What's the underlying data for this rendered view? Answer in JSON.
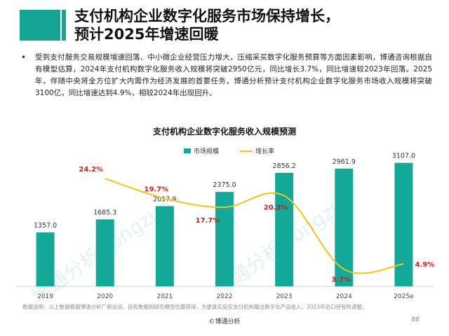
{
  "slide": {
    "title_line1": "支付机构企业数字化服务市场保持增长，",
    "title_line2": "预计2025年增速回暖",
    "bullet": "受到支付服务交易规模增速回落、中小微企业经营压力增大，压缩采买数字化服务预算等方面因素影响，博通咨询根据自有模型估算，2024年支付机构数字化服务收入规模将突破2950亿元，同比增长3.7%，同比增速较2023年回落。2025年，伴随中央将全方位扩大内需作为经济发展的首要任务，博通分析预计支付机构企业数字化服务市场收入规模将突破3100亿，同比增速达到4.9%，相较2024年出现回升。",
    "note": "数据说明：以上数据根据博通分析厂商访谈、自有数据和研究模型估算获得，为更真实反应支付机构输出数字化产品收入，2023年后口径有所调整。",
    "footer": "©博通分析",
    "page_number": "88"
  },
  "colors": {
    "accent": "#17a593",
    "bar": "#13a897",
    "line": "#f3c31c",
    "rate_label": "#c0231e"
  },
  "chart_data": {
    "type": "bar",
    "title": "支付机构企业数字化服务收入规模预测",
    "categories": [
      "2019",
      "2020",
      "2021",
      "2022",
      "2023",
      "2024",
      "2025e"
    ],
    "series": [
      {
        "name": "市场规模",
        "type": "bar",
        "values": [
          1357.0,
          1685.3,
          2017.9,
          2375.0,
          2856.2,
          2961.9,
          3107.0
        ],
        "labels": [
          "1357.0",
          "1685.3",
          "2017.9",
          "2375.0",
          "2856.2",
          "2961.9",
          "3107.0"
        ]
      },
      {
        "name": "增长率",
        "type": "line",
        "values": [
          null,
          24.2,
          19.7,
          17.7,
          20.3,
          3.7,
          4.9
        ],
        "labels": [
          "",
          "24.2%",
          "19.7%",
          "17.7%",
          "20.3%",
          "3.7%",
          "4.9%"
        ]
      }
    ],
    "ylim": [
      0,
      3400
    ],
    "y2lim": [
      0,
      28
    ],
    "legend_position": "top-center",
    "grid": false,
    "watermark": "博通分析Gōngzuò"
  }
}
